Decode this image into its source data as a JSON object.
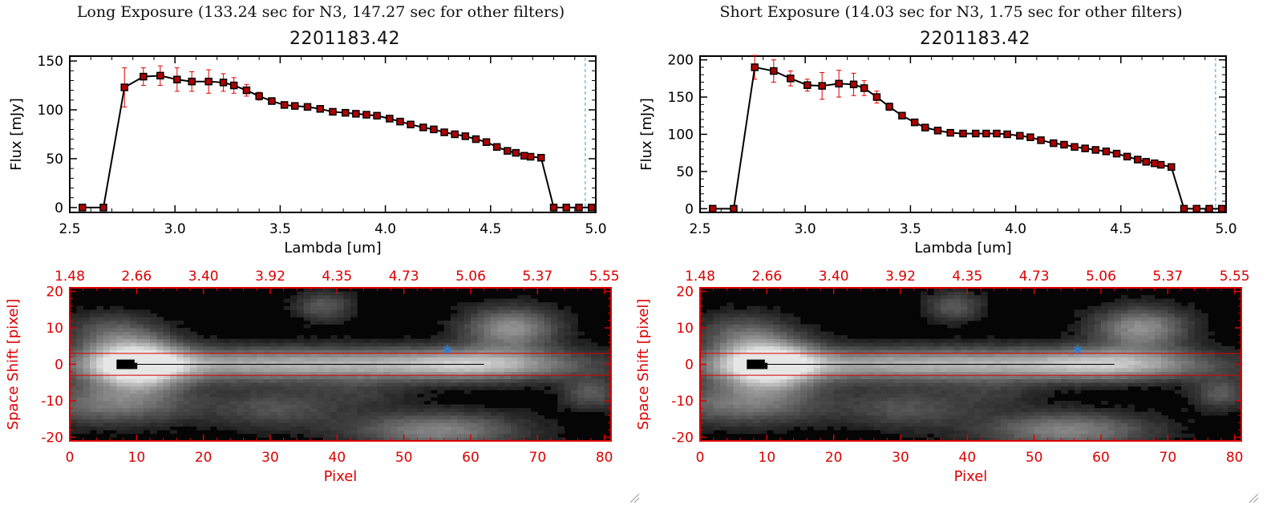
{
  "colors": {
    "error_bar": "#e00000",
    "line": "#000000",
    "marker_fill": "#b00000",
    "axis_red": "#dd0000",
    "cyan_dashed": "#3aa0d0",
    "star": "#2a7fd8"
  },
  "chart_data": [
    {
      "type": "line",
      "panel": "long",
      "header": "Long Exposure (133.24 sec for N3, 147.27 sec for other filters)",
      "title": "2201183.42",
      "xlabel": "Lambda [um]",
      "ylabel": "Flux [mJy]",
      "xlim": [
        2.5,
        5.0
      ],
      "ylim": [
        -5,
        155
      ],
      "xticks": [
        "2.5",
        "3.0",
        "3.5",
        "4.0",
        "4.5",
        "5.0"
      ],
      "yticks": [
        "0",
        "50",
        "100",
        "150"
      ],
      "vline_x": 4.95,
      "x": [
        2.56,
        2.66,
        2.76,
        2.85,
        2.93,
        3.01,
        3.08,
        3.16,
        3.23,
        3.28,
        3.34,
        3.4,
        3.46,
        3.52,
        3.57,
        3.63,
        3.69,
        3.75,
        3.81,
        3.86,
        3.91,
        3.96,
        4.02,
        4.07,
        4.12,
        4.18,
        4.23,
        4.28,
        4.33,
        4.38,
        4.43,
        4.48,
        4.53,
        4.58,
        4.62,
        4.66,
        4.69,
        4.74,
        4.8,
        4.86,
        4.92,
        4.98
      ],
      "y": [
        0,
        0,
        123,
        134,
        135,
        131,
        129,
        129,
        128,
        125,
        120,
        114,
        109,
        105,
        104,
        103,
        101,
        98,
        97,
        96,
        95,
        94,
        91,
        88,
        85,
        82,
        80,
        77,
        75,
        73,
        70,
        67,
        62,
        58,
        56,
        53,
        52,
        51,
        0,
        0,
        0,
        0
      ],
      "err": [
        0,
        0,
        20,
        9,
        10,
        12,
        10,
        12,
        9,
        8,
        6,
        4,
        3,
        2,
        2,
        2,
        2,
        2,
        2,
        2,
        2,
        2,
        2,
        2,
        2,
        2,
        2,
        2,
        2,
        2,
        2,
        2,
        2,
        2,
        2,
        2,
        2,
        2,
        2,
        2,
        2,
        2
      ],
      "image": {
        "ylabel": "Space Shift [pixel]",
        "xlabel": "Pixel",
        "xlim": [
          0,
          81
        ],
        "ylim": [
          -21,
          21
        ],
        "xticks": [
          "0",
          "10",
          "20",
          "30",
          "40",
          "50",
          "60",
          "70",
          "80"
        ],
        "yticks": [
          "-20",
          "-10",
          "0",
          "10",
          "20"
        ],
        "top_ticks": [
          "1.48",
          "2.66",
          "3.40",
          "3.92",
          "4.35",
          "4.73",
          "5.06",
          "5.37",
          "5.55"
        ],
        "hlines": [
          3,
          -3
        ],
        "star": [
          56.5,
          4
        ]
      }
    },
    {
      "type": "line",
      "panel": "short",
      "header": "Short Exposure (14.03 sec for N3, 1.75 sec for other filters)",
      "title": "2201183.42",
      "xlabel": "Lambda [um]",
      "ylabel": "Flux [mJy]",
      "xlim": [
        2.5,
        5.0
      ],
      "ylim": [
        -5,
        205
      ],
      "xticks": [
        "2.5",
        "3.0",
        "3.5",
        "4.0",
        "4.5",
        "5.0"
      ],
      "yticks": [
        "0",
        "50",
        "100",
        "150",
        "200"
      ],
      "vline_x": 4.95,
      "x": [
        2.56,
        2.66,
        2.76,
        2.85,
        2.93,
        3.01,
        3.08,
        3.16,
        3.23,
        3.28,
        3.34,
        3.4,
        3.46,
        3.52,
        3.57,
        3.63,
        3.69,
        3.75,
        3.81,
        3.86,
        3.91,
        3.96,
        4.02,
        4.07,
        4.12,
        4.18,
        4.23,
        4.28,
        4.33,
        4.38,
        4.43,
        4.48,
        4.53,
        4.58,
        4.62,
        4.66,
        4.69,
        4.74,
        4.8,
        4.86,
        4.92,
        4.98
      ],
      "y": [
        0,
        0,
        190,
        185,
        175,
        166,
        165,
        168,
        167,
        162,
        150,
        137,
        125,
        116,
        109,
        105,
        102,
        101,
        101,
        101,
        101,
        100,
        98,
        96,
        92,
        88,
        86,
        83,
        81,
        79,
        77,
        74,
        70,
        66,
        63,
        61,
        59,
        56,
        0,
        0,
        0,
        0
      ],
      "err": [
        0,
        0,
        16,
        15,
        10,
        8,
        18,
        18,
        15,
        10,
        8,
        5,
        3,
        2,
        2,
        2,
        2,
        2,
        2,
        2,
        2,
        2,
        2,
        2,
        2,
        2,
        2,
        2,
        2,
        2,
        2,
        2,
        2,
        2,
        2,
        2,
        2,
        2,
        2,
        2,
        2,
        2
      ],
      "image": {
        "ylabel": "Space Shift [pixel]",
        "xlabel": "Pixel",
        "xlim": [
          0,
          81
        ],
        "ylim": [
          -21,
          21
        ],
        "xticks": [
          "0",
          "10",
          "20",
          "30",
          "40",
          "50",
          "60",
          "70",
          "80"
        ],
        "yticks": [
          "-20",
          "-10",
          "0",
          "10",
          "20"
        ],
        "top_ticks": [
          "1.48",
          "2.66",
          "3.40",
          "3.92",
          "4.35",
          "4.73",
          "5.06",
          "5.37",
          "5.55"
        ],
        "hlines": [
          3,
          -3
        ],
        "star": [
          56.5,
          4
        ]
      }
    }
  ]
}
